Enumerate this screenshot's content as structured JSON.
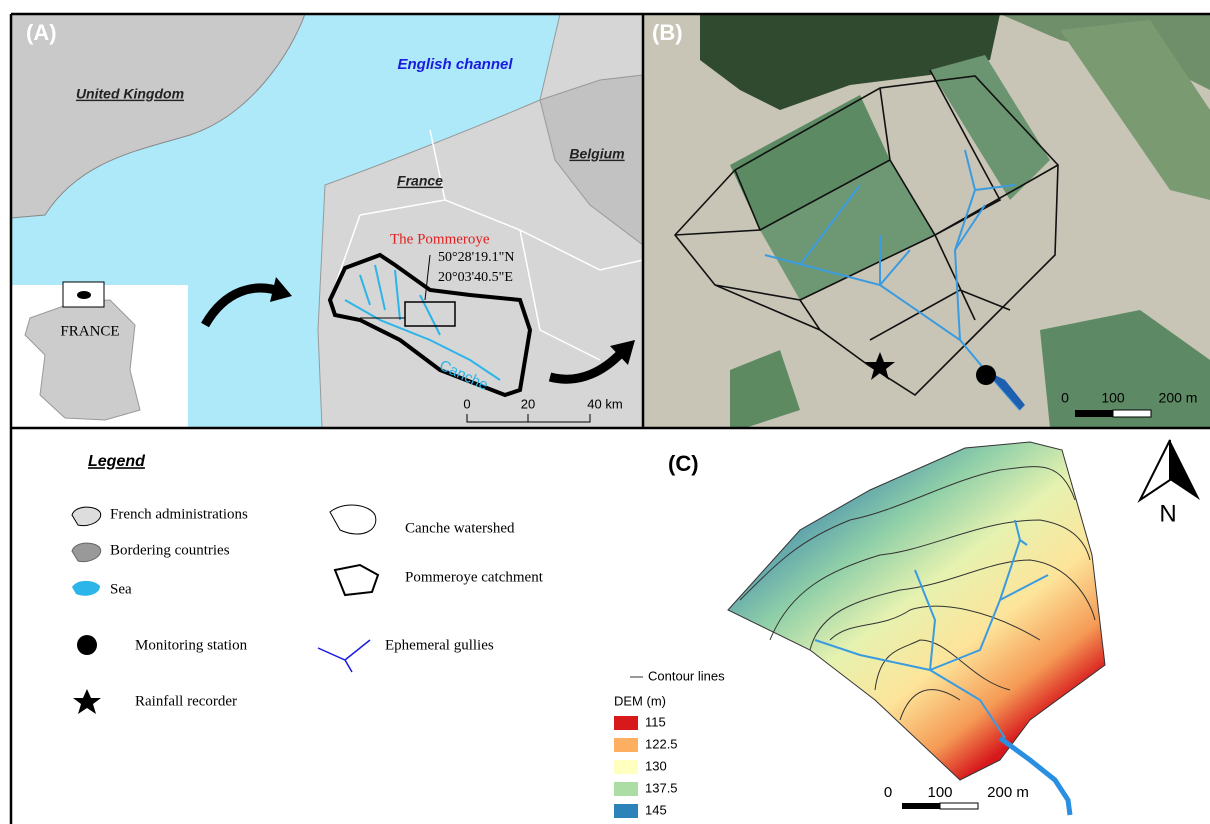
{
  "panel_a": {
    "label": "(A)",
    "english_channel": "English channel",
    "united_kingdom": "United Kingdom",
    "france": "France",
    "belgium": "Belgium",
    "inset": "FRANCE",
    "site": "The Pommeroye",
    "latitude": "50°28'19.1\"N",
    "longitude": "20°03'40.5\"E",
    "river": "Canche",
    "scale": [
      "0",
      "20",
      "40 km"
    ]
  },
  "panel_b": {
    "label": "(B)",
    "scale": [
      "0",
      "100",
      "200 m"
    ]
  },
  "legend": {
    "title": "Legend",
    "items": [
      "French administrations",
      "Bordering countries",
      "Sea",
      "Monitoring station",
      "Rainfall recorder",
      "Canche watershed",
      "Pommeroye catchment",
      "Ephemeral gullies"
    ]
  },
  "panel_c": {
    "label": "(C)",
    "north": "N",
    "contour_lines": "Contour lines",
    "dem_title": "DEM (m)",
    "dem_classes": [
      "115",
      "122.5",
      "130",
      "137.5",
      "145"
    ],
    "scale": [
      "0",
      "100",
      "200 m"
    ]
  }
}
